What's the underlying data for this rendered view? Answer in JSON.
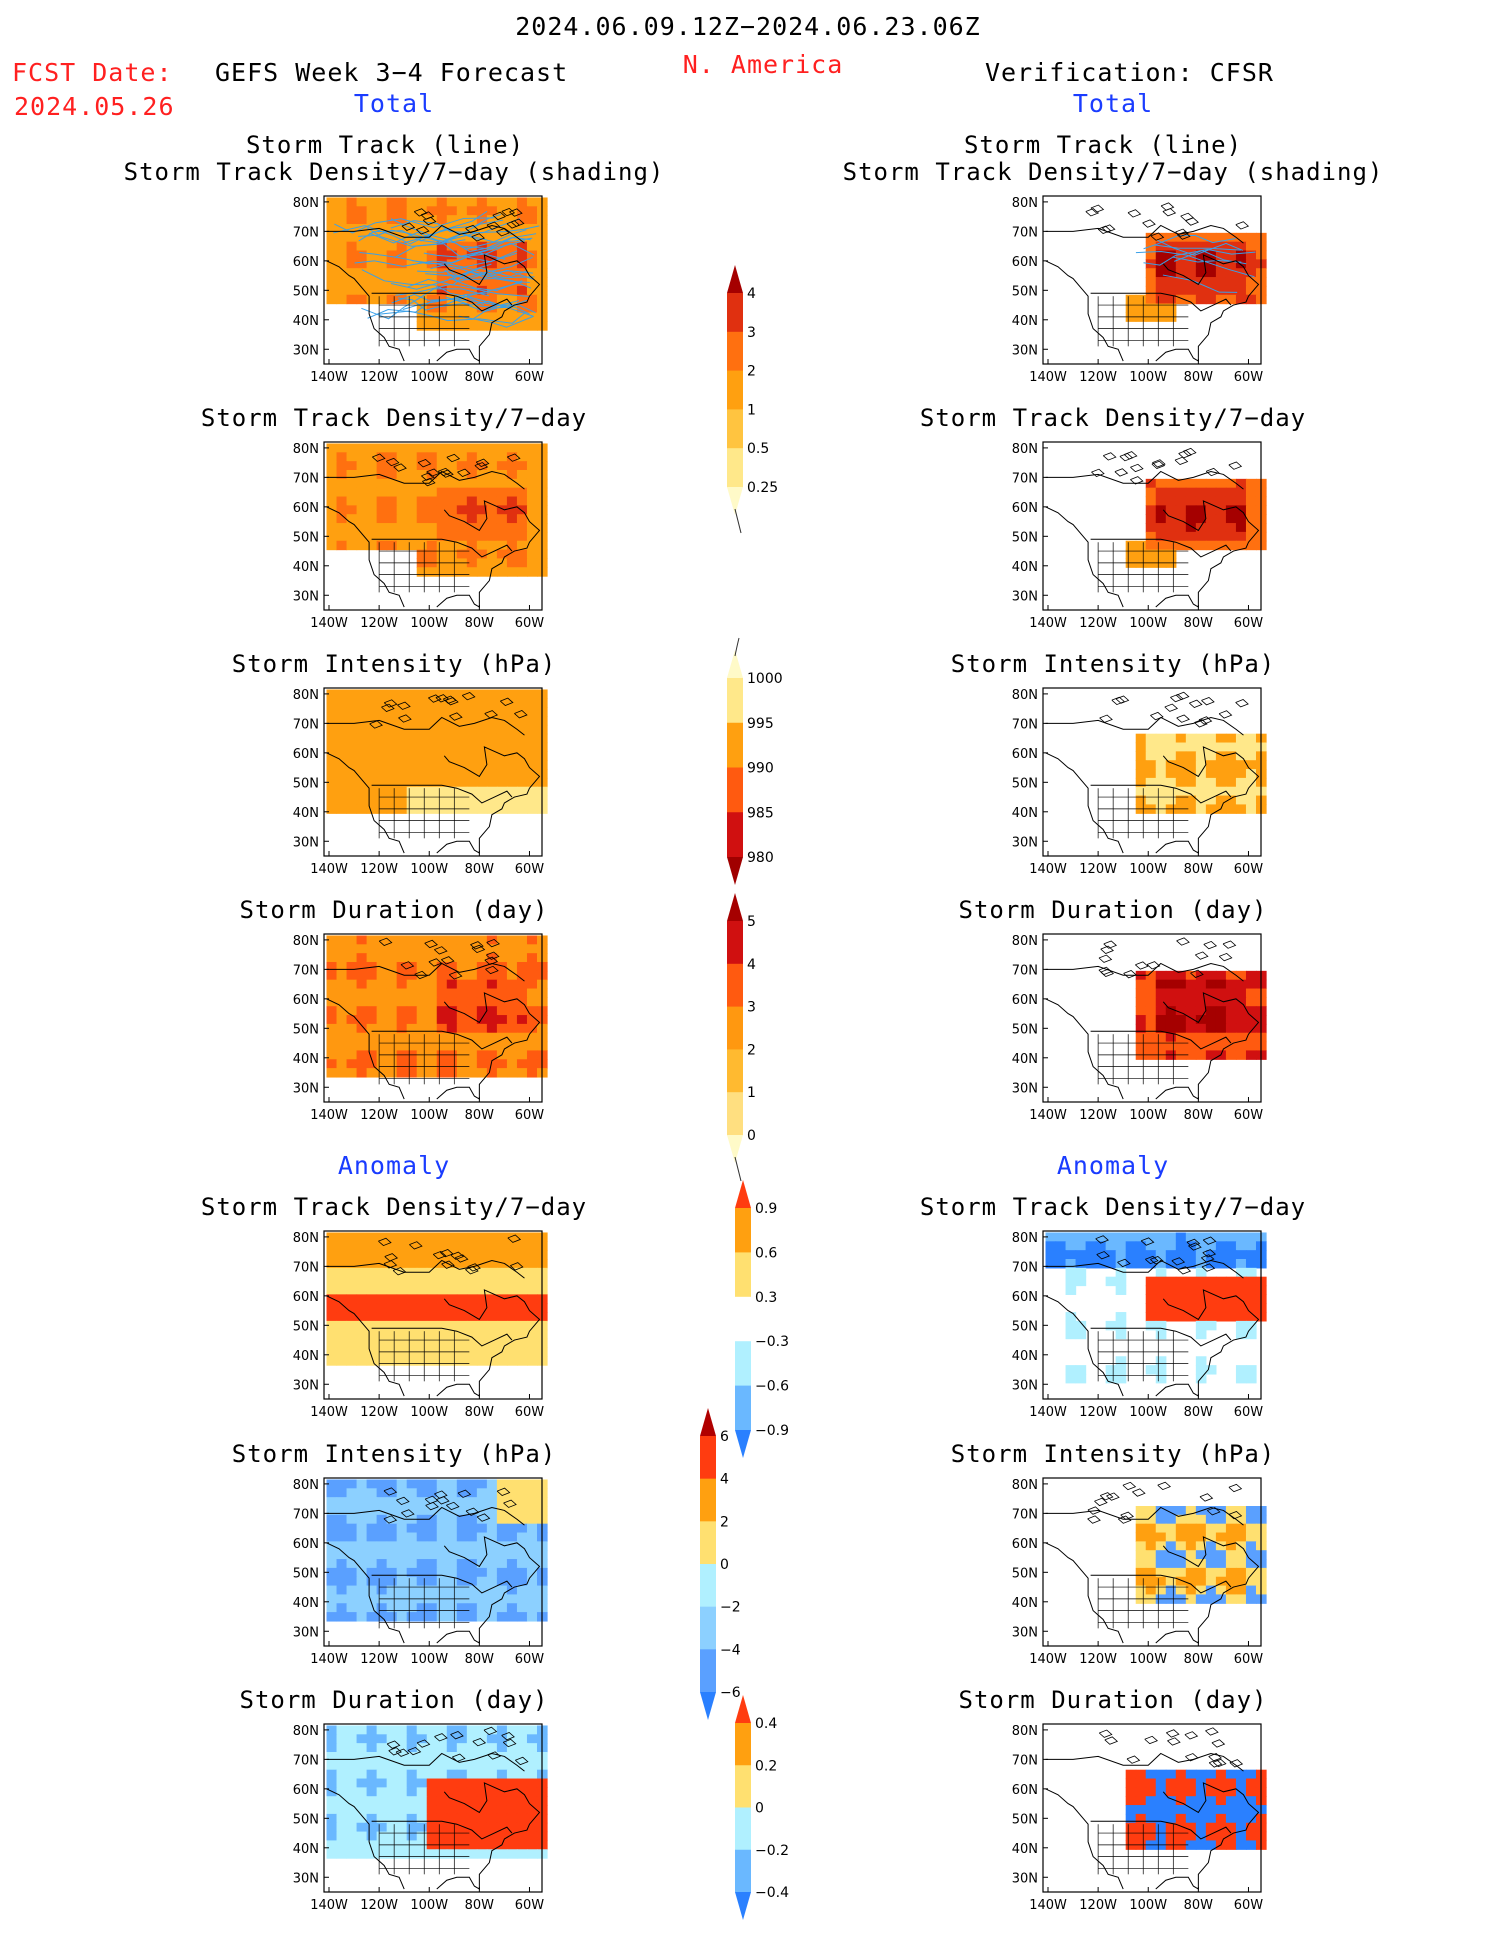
{
  "header": {
    "date_range": "2024.06.09.12Z−2024.06.23.06Z",
    "fcst_label": "FCST Date:",
    "fcst_date": "2024.05.26",
    "forecast_title": "GEFS Week 3−4 Forecast",
    "region": "N. America",
    "verification": "Verification: CFSR"
  },
  "sections": {
    "total": "Total",
    "anomaly": "Anomaly"
  },
  "axes": {
    "lat_ticks": [
      "80N",
      "70N",
      "60N",
      "50N",
      "40N",
      "30N"
    ],
    "lon_ticks": [
      "140W",
      "120W",
      "100W",
      "80W",
      "60W"
    ]
  },
  "panels": [
    {
      "id": "fc-track",
      "title1": "Storm Track (line)",
      "title2": "Storm Track Density/7−day (shading)",
      "palette": "density"
    },
    {
      "id": "fc-density",
      "title1": "Storm Track Density/7−day",
      "title2": "",
      "palette": "density"
    },
    {
      "id": "fc-intensity",
      "title1": "Storm Intensity (hPa)",
      "title2": "",
      "palette": "intensity"
    },
    {
      "id": "fc-duration",
      "title1": "Storm Duration (day)",
      "title2": "",
      "palette": "duration"
    },
    {
      "id": "fc-density-anom",
      "title1": "Storm Track Density/7−day",
      "title2": "",
      "palette": "anom_density"
    },
    {
      "id": "fc-intensity-anom",
      "title1": "Storm Intensity (hPa)",
      "title2": "",
      "palette": "anom_intensity"
    },
    {
      "id": "fc-duration-anom",
      "title1": "Storm Duration (day)",
      "title2": "",
      "palette": "anom_duration"
    },
    {
      "id": "vf-track",
      "title1": "Storm Track (line)",
      "title2": "Storm Track Density/7−day (shading)",
      "palette": "density"
    },
    {
      "id": "vf-density",
      "title1": "Storm Track Density/7−day",
      "title2": "",
      "palette": "density"
    },
    {
      "id": "vf-intensity",
      "title1": "Storm Intensity (hPa)",
      "title2": "",
      "palette": "intensity"
    },
    {
      "id": "vf-duration",
      "title1": "Storm Duration (day)",
      "title2": "",
      "palette": "duration"
    },
    {
      "id": "vf-density-anom",
      "title1": "Storm Track Density/7−day",
      "title2": "",
      "palette": "anom_density"
    },
    {
      "id": "vf-intensity-anom",
      "title1": "Storm Intensity (hPa)",
      "title2": "",
      "palette": "anom_intensity"
    },
    {
      "id": "vf-duration-anom",
      "title1": "Storm Duration (day)",
      "title2": "",
      "palette": "anom_duration"
    }
  ],
  "colorbars": [
    {
      "id": "cb-density",
      "labels": [
        "4",
        "3",
        "2",
        "1",
        "0.5",
        "0.25"
      ],
      "colors": [
        "#a50000",
        "#e03010",
        "#ff7010",
        "#ffa010",
        "#ffc440",
        "#ffe88a",
        "#fffac8"
      ]
    },
    {
      "id": "cb-intensity",
      "labels": [
        "1000",
        "995",
        "990",
        "985",
        "980"
      ],
      "colors": [
        "#fffac8",
        "#ffe88a",
        "#ffa010",
        "#ff5a10",
        "#d01010",
        "#a00000"
      ]
    },
    {
      "id": "cb-duration",
      "labels": [
        "5",
        "4",
        "3",
        "2",
        "1",
        "0"
      ],
      "colors": [
        "#a50000",
        "#d01010",
        "#ff5a10",
        "#ff9810",
        "#ffba30",
        "#ffdf80",
        "#fffac8"
      ]
    },
    {
      "id": "cb-anom-density",
      "labels": [
        "0.9",
        "0.6",
        "0.3",
        "−0.3",
        "−0.6",
        "−0.9"
      ],
      "colors": [
        "#ff3c10",
        "#ffa010",
        "#ffe070",
        "#ffffff",
        "#b0f0ff",
        "#6ab8ff",
        "#2a80ff"
      ]
    },
    {
      "id": "cb-anom-intensity",
      "labels": [
        "6",
        "4",
        "2",
        "0",
        "−2",
        "−4",
        "−6"
      ],
      "colors": [
        "#b00000",
        "#ff3c10",
        "#ffa010",
        "#ffe070",
        "#b0f0ff",
        "#8cd0ff",
        "#5aa0ff",
        "#2a80ff"
      ]
    },
    {
      "id": "cb-anom-duration",
      "labels": [
        "0.4",
        "0.2",
        "0",
        "−0.2",
        "−0.4"
      ],
      "colors": [
        "#ff3c10",
        "#ffa010",
        "#ffe070",
        "#b0f0ff",
        "#6ab8ff",
        "#2a80ff"
      ]
    }
  ],
  "palettes": {
    "density": [
      "#fffac8",
      "#ffe88a",
      "#ffc440",
      "#ffa010",
      "#ff7010",
      "#e03010",
      "#a50000"
    ],
    "intensity": [
      "#fffac8",
      "#ffe88a",
      "#ffa010",
      "#ff5a10",
      "#d01010",
      "#a00000"
    ],
    "duration": [
      "#fffac8",
      "#ffdf80",
      "#ffba30",
      "#ff9810",
      "#ff5a10",
      "#d01010",
      "#a50000"
    ],
    "anom_density": [
      "#2a80ff",
      "#6ab8ff",
      "#b0f0ff",
      "#ffffff",
      "#ffe070",
      "#ffa010",
      "#ff3c10"
    ],
    "anom_intensity": [
      "#2a80ff",
      "#5aa0ff",
      "#8cd0ff",
      "#b0f0ff",
      "#ffe070",
      "#ffa010",
      "#ff3c10",
      "#b00000"
    ],
    "anom_duration": [
      "#2a80ff",
      "#6ab8ff",
      "#b0f0ff",
      "#ffe070",
      "#ffa010",
      "#ff3c10"
    ]
  }
}
